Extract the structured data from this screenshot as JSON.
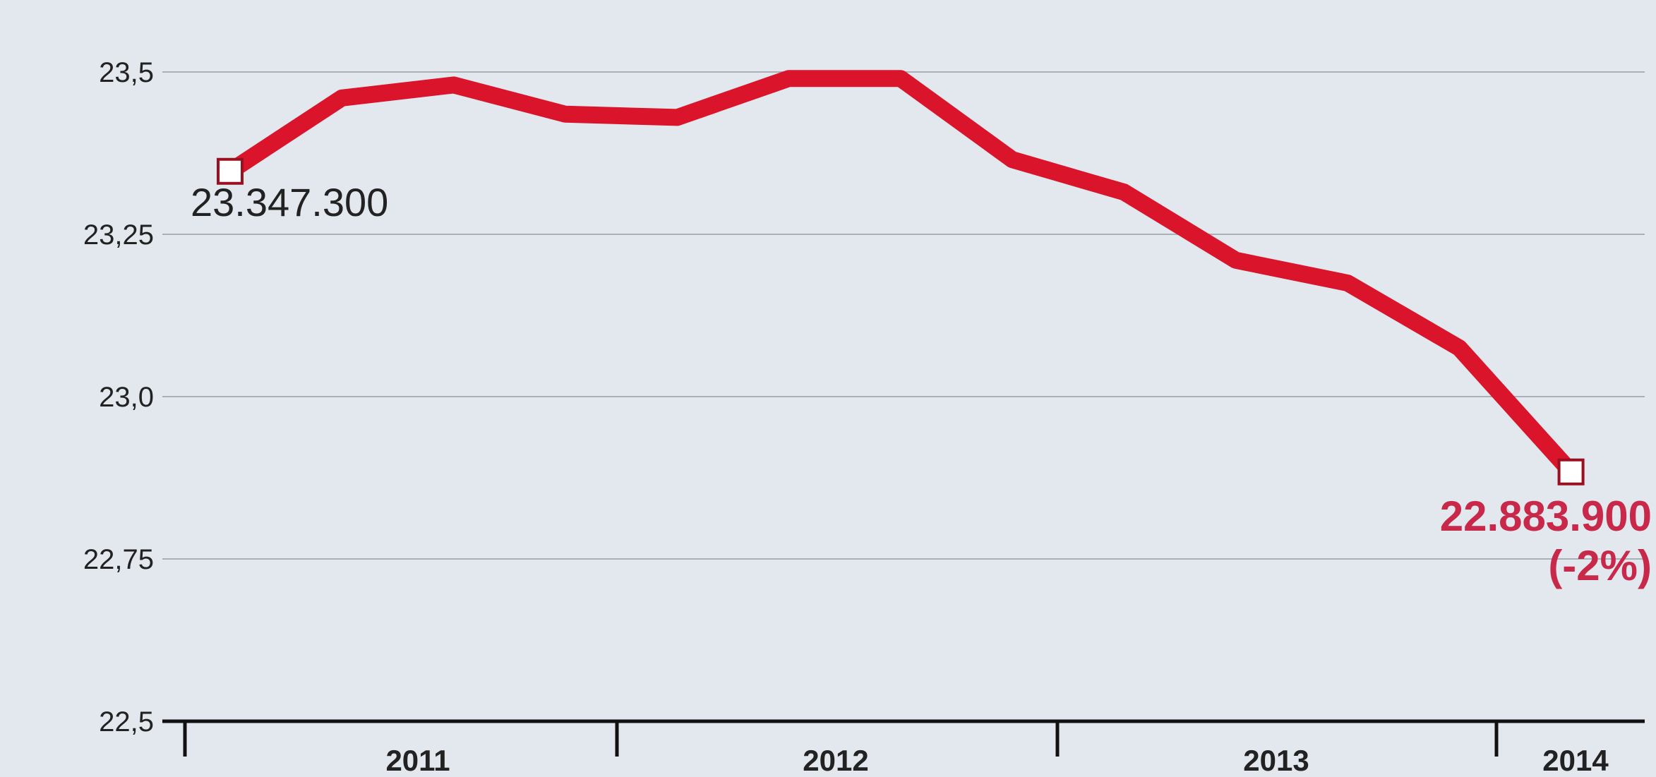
{
  "chart_data": {
    "type": "line",
    "title": "",
    "xlabel": "",
    "ylabel": "",
    "ylim": [
      22.5,
      23.55
    ],
    "y_ticks": [
      {
        "value": 23.5,
        "label": "23,5"
      },
      {
        "value": 23.25,
        "label": "23,25"
      },
      {
        "value": 23.0,
        "label": "23,0"
      },
      {
        "value": 22.75,
        "label": "22,75"
      },
      {
        "value": 22.5,
        "label": "22,5"
      }
    ],
    "x_labels": [
      "2011",
      "2012",
      "2013",
      "2014"
    ],
    "x_period_count": 13,
    "series": [
      {
        "color": "#d9142b",
        "values": [
          23.347,
          23.46,
          23.48,
          23.435,
          23.43,
          23.49,
          23.49,
          23.365,
          23.315,
          23.21,
          23.175,
          23.075,
          22.884
        ]
      }
    ],
    "grid": true,
    "annotations": {
      "start_value": "23.347.300",
      "end_value": "22.883.900",
      "end_change": "(-2%)"
    },
    "colors": {
      "line": "#d9142b",
      "end_label": "#c8284a",
      "grid": "#a9b0b8",
      "axis": "#111111"
    }
  }
}
